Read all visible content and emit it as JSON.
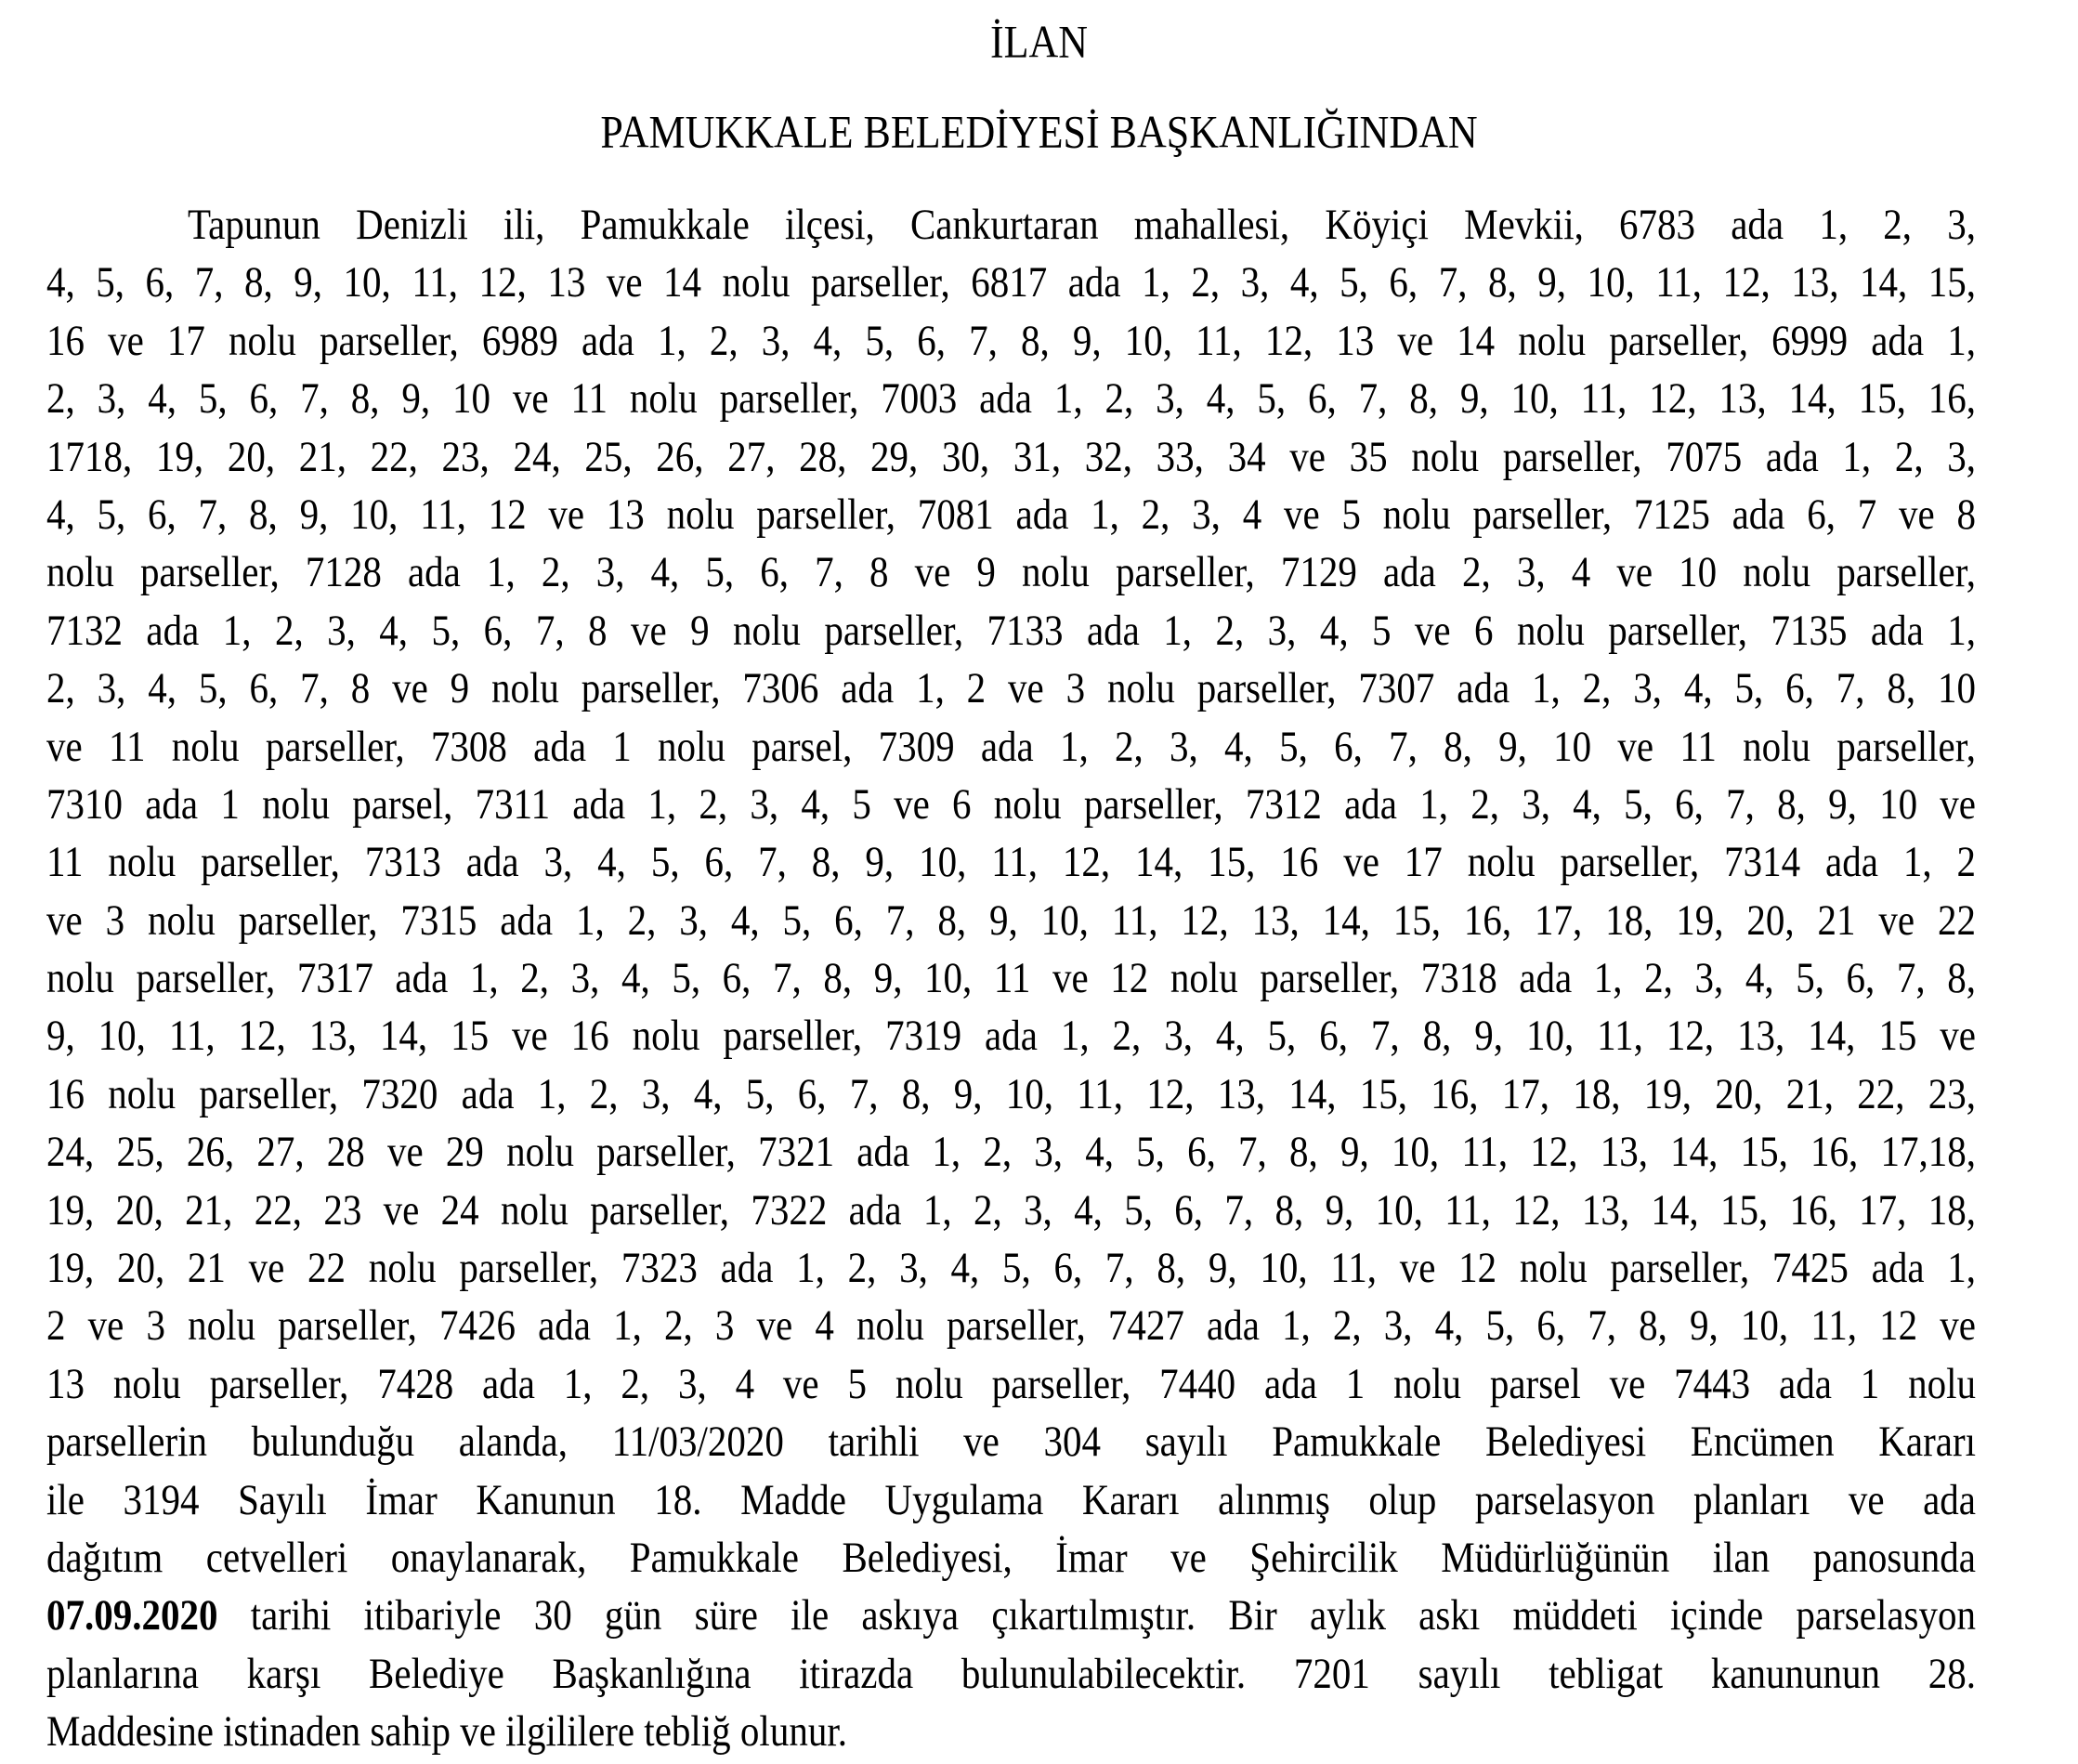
{
  "heading": "İLAN",
  "title": "PAMUKKALE BELEDİYESİ BAŞKANLIĞINDAN",
  "lines": [
    "Tapunun Denizli ili, Pamukkale ilçesi, Cankurtaran mahallesi, Köyiçi Mevkii, 6783 ada 1, 2, 3,",
    "4, 5, 6, 7, 8, 9, 10, 11, 12, 13 ve 14 nolu parseller, 6817 ada 1, 2, 3, 4, 5, 6, 7, 8, 9, 10, 11, 12, 13, 14, 15,",
    "16 ve 17 nolu parseller, 6989 ada 1, 2, 3, 4, 5, 6, 7, 8, 9, 10, 11, 12, 13 ve 14 nolu parseller, 6999 ada 1,",
    "2, 3, 4, 5, 6, 7, 8, 9, 10 ve 11 nolu parseller, 7003 ada 1, 2, 3, 4, 5, 6, 7, 8, 9, 10, 11, 12, 13, 14, 15, 16,",
    "1718, 19, 20, 21, 22, 23, 24, 25, 26, 27, 28, 29, 30, 31, 32, 33, 34 ve 35 nolu parseller, 7075 ada 1, 2, 3,",
    "4, 5, 6, 7, 8, 9, 10, 11, 12 ve 13 nolu parseller, 7081 ada 1, 2, 3, 4 ve 5 nolu parseller, 7125 ada 6, 7 ve 8",
    "nolu parseller, 7128 ada 1, 2, 3, 4, 5, 6, 7, 8 ve 9 nolu parseller, 7129 ada  2, 3, 4 ve 10 nolu parseller,",
    "7132 ada 1, 2, 3, 4, 5, 6, 7, 8 ve 9 nolu parseller, 7133 ada 1, 2, 3, 4, 5 ve 6 nolu parseller, 7135 ada 1,",
    "2, 3, 4, 5, 6, 7, 8 ve 9 nolu parseller, 7306 ada 1, 2 ve 3 nolu parseller, 7307 ada 1, 2, 3, 4, 5, 6, 7, 8, 10",
    "ve 11 nolu parseller, 7308 ada 1 nolu parsel, 7309 ada 1, 2, 3, 4, 5, 6, 7, 8, 9, 10 ve 11 nolu parseller,",
    "7310 ada 1 nolu parsel, 7311 ada 1, 2, 3, 4, 5 ve 6 nolu parseller, 7312 ada 1, 2, 3, 4, 5, 6, 7, 8, 9, 10 ve",
    "11 nolu parseller, 7313 ada 3, 4, 5, 6, 7, 8, 9, 10, 11, 12, 14, 15, 16 ve 17 nolu parseller, 7314 ada 1, 2",
    "ve 3 nolu parseller, 7315 ada 1, 2, 3, 4, 5, 6, 7, 8, 9, 10, 11, 12, 13, 14, 15, 16, 17, 18, 19, 20, 21 ve 22",
    "nolu parseller, 7317 ada 1, 2, 3, 4, 5, 6, 7, 8, 9, 10, 11 ve 12 nolu parseller, 7318 ada 1, 2, 3, 4, 5, 6, 7, 8,",
    "9, 10, 11, 12, 13, 14, 15 ve 16 nolu parseller, 7319 ada 1, 2, 3, 4, 5, 6, 7, 8, 9, 10, 11, 12, 13, 14, 15 ve",
    "16 nolu parseller, 7320 ada 1, 2, 3, 4, 5, 6, 7, 8, 9, 10, 11, 12, 13, 14, 15, 16, 17, 18, 19, 20, 21, 22, 23,",
    "24, 25, 26, 27, 28 ve 29 nolu parseller, 7321 ada 1, 2, 3, 4, 5, 6, 7, 8, 9, 10, 11, 12, 13, 14, 15, 16, 17,18,",
    "19, 20, 21, 22, 23 ve 24 nolu parseller, 7322 ada 1, 2, 3, 4, 5, 6, 7, 8, 9, 10, 11, 12, 13, 14, 15, 16, 17, 18,",
    "19, 20, 21 ve 22 nolu parseller, 7323 ada 1, 2, 3, 4, 5, 6, 7, 8, 9, 10, 11, ve 12 nolu parseller, 7425 ada 1,",
    "2 ve 3 nolu parseller, 7426 ada 1, 2, 3 ve 4 nolu parseller, 7427 ada 1, 2, 3, 4, 5, 6, 7, 8, 9, 10, 11, 12 ve",
    "13 nolu parseller, 7428 ada 1, 2, 3, 4 ve 5 nolu parseller, 7440 ada 1 nolu parsel ve 7443 ada 1 nolu",
    "parsellerin bulunduğu alanda, 11/03/2020 tarihli ve 304 sayılı Pamukkale Belediyesi Encümen Kararı",
    "ile 3194 Sayılı İmar Kanunun 18. Madde Uygulama Kararı alınmış olup parselasyon planları ve ada",
    "dağıtım cetvelleri onaylanarak, Pamukkale Belediyesi, İmar ve Şehircilik Müdürlüğünün ilan panosunda"
  ],
  "bold_line": {
    "date": "07.09.2020",
    "rest": " tarihi itibariyle 30 gün süre ile askıya çıkartılmıştır. Bir aylık askı müddeti içinde parselasyon"
  },
  "tail_lines": [
    "planlarına karşı Belediye Başkanlığına itirazda bulunulabilecektir. 7201 sayılı tebligat kanununun 28.",
    "Maddesine istinaden sahip ve ilgililere tebliğ olunur."
  ]
}
